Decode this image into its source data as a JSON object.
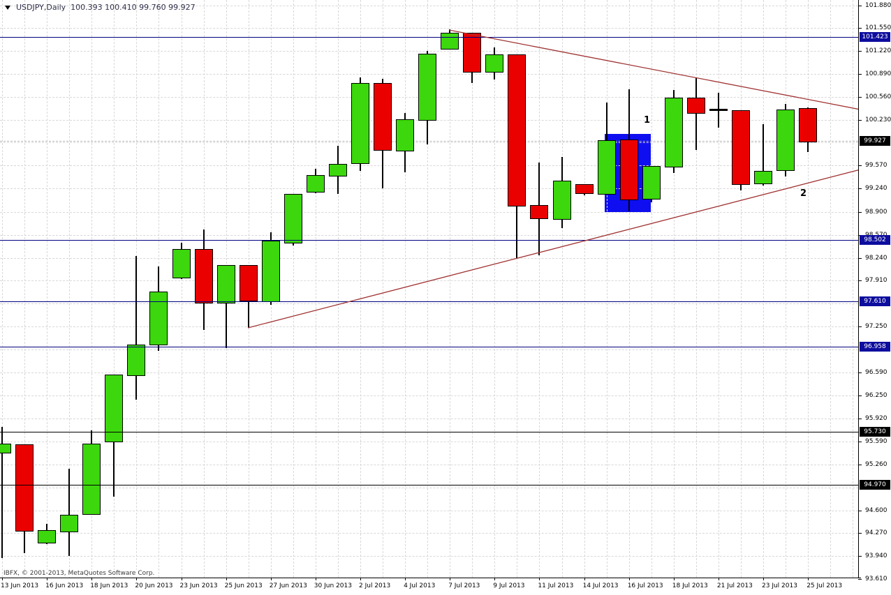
{
  "title": {
    "symbol_period": "USDJPY,Daily",
    "quote_ohlc": "100.393 100.410 99.760 99.927"
  },
  "footer": {
    "copyright": "IBFX, © 2001-2013, MetaQuotes Software Corp."
  },
  "palette": {
    "bull": "#3CD70C",
    "bear": "#EB0000",
    "candle_border": "#000000",
    "doji": "#000000",
    "rect_fill": "#0E0EF0",
    "trendline": "#A03333",
    "hline_blue": "#000080",
    "hline_black": "#000000",
    "badge_blue": "#0D0D9E",
    "badge_black": "#000000",
    "grid": "#d8d8d8",
    "bid_line": "#b4b4b4"
  },
  "chart_data": {
    "type": "candlestick",
    "symbol": "USDJPY",
    "timeframe": "Daily",
    "grid": "on",
    "current_quote": {
      "open": 100.393,
      "high": 100.41,
      "low": 99.76,
      "close": 99.927
    },
    "ylim": [
      93.55,
      101.95
    ],
    "candles": [
      {
        "date": "13 Jun 2013",
        "o": 95.44,
        "h": 95.8,
        "l": 93.91,
        "c": 95.56
      },
      {
        "date": "14 Jun 2013",
        "o": 95.55,
        "h": 95.55,
        "l": 93.98,
        "c": 94.31
      },
      {
        "date": "16 Jun 2013",
        "o": 94.14,
        "h": 94.4,
        "l": 94.11,
        "c": 94.31
      },
      {
        "date": "17 Jun 2013",
        "o": 94.3,
        "h": 95.2,
        "l": 93.94,
        "c": 94.53
      },
      {
        "date": "18 Jun 2013",
        "o": 94.55,
        "h": 95.75,
        "l": 94.55,
        "c": 95.56
      },
      {
        "date": "19 Jun 2013",
        "o": 95.6,
        "h": 96.56,
        "l": 94.8,
        "c": 96.56
      },
      {
        "date": "20 Jun 2013",
        "o": 96.56,
        "h": 98.27,
        "l": 96.19,
        "c": 96.99
      },
      {
        "date": "21 Jun 2013",
        "o": 97.0,
        "h": 98.11,
        "l": 96.9,
        "c": 97.75
      },
      {
        "date": "23 Jun 2013",
        "o": 97.96,
        "h": 98.46,
        "l": 97.93,
        "c": 98.37
      },
      {
        "date": "24 Jun 2013",
        "o": 98.37,
        "h": 98.65,
        "l": 97.2,
        "c": 97.6
      },
      {
        "date": "25 Jun 2013",
        "o": 97.6,
        "h": 98.14,
        "l": 96.94,
        "c": 98.14
      },
      {
        "date": "26 Jun 2013",
        "o": 98.14,
        "h": 98.14,
        "l": 97.23,
        "c": 97.63
      },
      {
        "date": "27 Jun 2013",
        "o": 97.62,
        "h": 98.61,
        "l": 97.56,
        "c": 98.49
      },
      {
        "date": "28 Jun 2013",
        "o": 98.47,
        "h": 99.16,
        "l": 98.42,
        "c": 99.16
      },
      {
        "date": "30 Jun 2013",
        "o": 99.2,
        "h": 99.52,
        "l": 99.17,
        "c": 99.43
      },
      {
        "date": "1 Jul 2013",
        "o": 99.43,
        "h": 99.85,
        "l": 99.16,
        "c": 99.59
      },
      {
        "date": "2 Jul 2013",
        "o": 99.61,
        "h": 100.84,
        "l": 99.49,
        "c": 100.76
      },
      {
        "date": "3 Jul 2013",
        "o": 100.76,
        "h": 100.82,
        "l": 99.24,
        "c": 99.8
      },
      {
        "date": "4 Jul 2013",
        "o": 99.79,
        "h": 100.33,
        "l": 99.47,
        "c": 100.24
      },
      {
        "date": "5 Jul 2013",
        "o": 100.24,
        "h": 101.22,
        "l": 99.87,
        "c": 101.18
      },
      {
        "date": "7 Jul 2013",
        "o": 101.26,
        "h": 101.53,
        "l": 101.26,
        "c": 101.48
      },
      {
        "date": "8 Jul 2013",
        "o": 101.48,
        "h": 101.48,
        "l": 100.76,
        "c": 100.93
      },
      {
        "date": "9 Jul 2013",
        "o": 100.93,
        "h": 101.27,
        "l": 100.81,
        "c": 101.17
      },
      {
        "date": "10 Jul 2013",
        "o": 101.17,
        "h": 101.17,
        "l": 98.24,
        "c": 99.0
      },
      {
        "date": "11 Jul 2013",
        "o": 99.0,
        "h": 99.61,
        "l": 98.28,
        "c": 98.82
      },
      {
        "date": "12 Jul 2013",
        "o": 98.81,
        "h": 99.69,
        "l": 98.67,
        "c": 99.35
      },
      {
        "date": "14 Jul 2013",
        "o": 99.3,
        "h": 99.3,
        "l": 99.14,
        "c": 99.18
      },
      {
        "date": "15 Jul 2013",
        "o": 99.17,
        "h": 100.48,
        "l": 99.15,
        "c": 99.94
      },
      {
        "date": "16 Jul 2013",
        "o": 99.95,
        "h": 100.67,
        "l": 98.91,
        "c": 99.09
      },
      {
        "date": "17 Jul 2013",
        "o": 99.1,
        "h": 99.56,
        "l": 99.04,
        "c": 99.56
      },
      {
        "date": "18 Jul 2013",
        "o": 99.56,
        "h": 100.66,
        "l": 99.46,
        "c": 100.55
      },
      {
        "date": "19 Jul 2013",
        "o": 100.55,
        "h": 100.84,
        "l": 99.79,
        "c": 100.34
      },
      {
        "date": "21 Jul 2013",
        "o": 100.37,
        "h": 100.62,
        "l": 100.12,
        "c": 100.37
      },
      {
        "date": "22 Jul 2013",
        "o": 100.37,
        "h": 100.37,
        "l": 99.21,
        "c": 99.31
      },
      {
        "date": "23 Jul 2013",
        "o": 99.32,
        "h": 100.17,
        "l": 99.28,
        "c": 99.49
      },
      {
        "date": "24 Jul 2013",
        "o": 99.51,
        "h": 100.46,
        "l": 99.41,
        "c": 100.38
      },
      {
        "date": "25 Jul 2013",
        "o": 100.393,
        "h": 100.41,
        "l": 99.76,
        "c": 99.927
      }
    ],
    "y_axis": {
      "ticks": [
        {
          "label": "101.880",
          "price": 101.88
        },
        {
          "label": "101.550",
          "price": 101.55
        },
        {
          "label": "101.220",
          "price": 101.22
        },
        {
          "label": "100.890",
          "price": 100.89
        },
        {
          "label": "100.560",
          "price": 100.56
        },
        {
          "label": "100.230",
          "price": 100.23
        },
        {
          "label": "99.570",
          "price": 99.57
        },
        {
          "label": "99.240",
          "price": 99.24
        },
        {
          "label": "98.900",
          "price": 98.9
        },
        {
          "label": "98.570",
          "price": 98.57
        },
        {
          "label": "98.240",
          "price": 98.24
        },
        {
          "label": "97.910",
          "price": 97.91
        },
        {
          "label": "97.250",
          "price": 97.25
        },
        {
          "label": "96.590",
          "price": 96.59
        },
        {
          "label": "96.250",
          "price": 96.25
        },
        {
          "label": "95.920",
          "price": 95.92
        },
        {
          "label": "95.590",
          "price": 95.59
        },
        {
          "label": "95.260",
          "price": 95.26
        },
        {
          "label": "94.600",
          "price": 94.6
        },
        {
          "label": "94.270",
          "price": 94.27
        },
        {
          "label": "93.940",
          "price": 93.94
        },
        {
          "label": "93.610",
          "price": 93.61
        }
      ],
      "hidden_grid_prices": [
        99.9,
        97.58,
        96.92,
        94.93
      ],
      "badges": [
        {
          "label": "101.423",
          "price": 101.423,
          "style": "blue"
        },
        {
          "label": "99.927",
          "price": 99.927,
          "style": "black"
        },
        {
          "label": "98.502",
          "price": 98.502,
          "style": "blue"
        },
        {
          "label": "97.610",
          "price": 97.61,
          "style": "blue"
        },
        {
          "label": "96.958",
          "price": 96.958,
          "style": "blue"
        },
        {
          "label": "95.730",
          "price": 95.73,
          "style": "black"
        },
        {
          "label": "94.970",
          "price": 94.97,
          "style": "black"
        }
      ]
    },
    "x_axis": {
      "labels": [
        "13 Jun 2013",
        "16 Jun 2013",
        "18 Jun 2013",
        "20 Jun 2013",
        "23 Jun 2013",
        "25 Jun 2013",
        "27 Jun 2013",
        "30 Jun 2013",
        "2 Jul 2013",
        "4 Jul 2013",
        "7 Jul 2013",
        "9 Jul 2013",
        "11 Jul 2013",
        "14 Jul 2013",
        "16 Jul 2013",
        "18 Jul 2013",
        "21 Jul 2013",
        "23 Jul 2013",
        "25 Jul 2013"
      ]
    },
    "horizontal_lines": [
      {
        "price": 101.423,
        "style": "blue"
      },
      {
        "price": 98.502,
        "style": "blue"
      },
      {
        "price": 97.61,
        "style": "blue"
      },
      {
        "price": 96.958,
        "style": "blue"
      },
      {
        "price": 95.73,
        "style": "black"
      },
      {
        "price": 94.97,
        "style": "black"
      }
    ],
    "bid_line_price": 99.927,
    "trendlines": [
      {
        "name": "ascending-support",
        "x1": 355,
        "y1": 470,
        "x2": 1232,
        "y2": 243
      },
      {
        "name": "descending-resistance",
        "x1": 643,
        "y1": 43,
        "x2": 1232,
        "y2": 157
      }
    ],
    "rectangle": {
      "x": 866,
      "y": 192,
      "w": 66,
      "h": 112,
      "price_top": 100.03,
      "price_bottom": 98.9
    },
    "annotations": [
      {
        "text": "1",
        "x": 922,
        "y": 165
      },
      {
        "text": "2",
        "x": 1146,
        "y": 270
      }
    ]
  }
}
